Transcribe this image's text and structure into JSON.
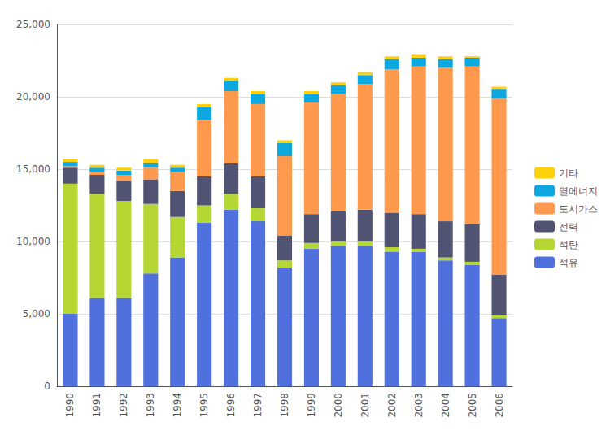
{
  "chart_data": {
    "type": "bar",
    "stacked": true,
    "grid": true,
    "legend": "right",
    "categories": [
      "1990",
      "1991",
      "1992",
      "1993",
      "1994",
      "1995",
      "1996",
      "1997",
      "1998",
      "1999",
      "2000",
      "2001",
      "2002",
      "2003",
      "2004",
      "2005",
      "2006"
    ],
    "series": [
      {
        "name": "석유",
        "values": [
          5000,
          6100,
          6100,
          7800,
          8900,
          11300,
          12200,
          11400,
          8200,
          9500,
          9700,
          9700,
          9300,
          9300,
          8700,
          8400,
          4700
        ]
      },
      {
        "name": "석탄",
        "values": [
          9000,
          7200,
          6700,
          4800,
          2800,
          1200,
          1100,
          900,
          500,
          400,
          300,
          300,
          300,
          200,
          200,
          200,
          200
        ]
      },
      {
        "name": "전력",
        "values": [
          1100,
          1300,
          1400,
          1700,
          1800,
          2000,
          2100,
          2200,
          1700,
          2000,
          2100,
          2200,
          2400,
          2400,
          2500,
          2600,
          2800
        ]
      },
      {
        "name": "도시가스",
        "values": [
          100,
          200,
          400,
          800,
          1300,
          3900,
          5000,
          5000,
          5500,
          7700,
          8100,
          8700,
          9900,
          10200,
          10600,
          10900,
          12200
        ]
      },
      {
        "name": "열에너지",
        "values": [
          300,
          300,
          300,
          300,
          300,
          900,
          700,
          700,
          900,
          600,
          600,
          600,
          700,
          600,
          600,
          600,
          600
        ]
      },
      {
        "name": "기타",
        "values": [
          200,
          200,
          200,
          300,
          200,
          200,
          200,
          200,
          200,
          200,
          200,
          200,
          200,
          200,
          200,
          100,
          200
        ]
      }
    ],
    "ylim": [
      0,
      25000
    ],
    "yticks": [
      0,
      {
        "value": 5000,
        "label": "5,000"
      },
      {
        "value": 10000,
        "label": "10,000"
      },
      {
        "value": 15000,
        "label": "15,000"
      },
      {
        "value": 20000,
        "label": "20,000"
      },
      {
        "value": 25000,
        "label": "25,000"
      }
    ]
  }
}
